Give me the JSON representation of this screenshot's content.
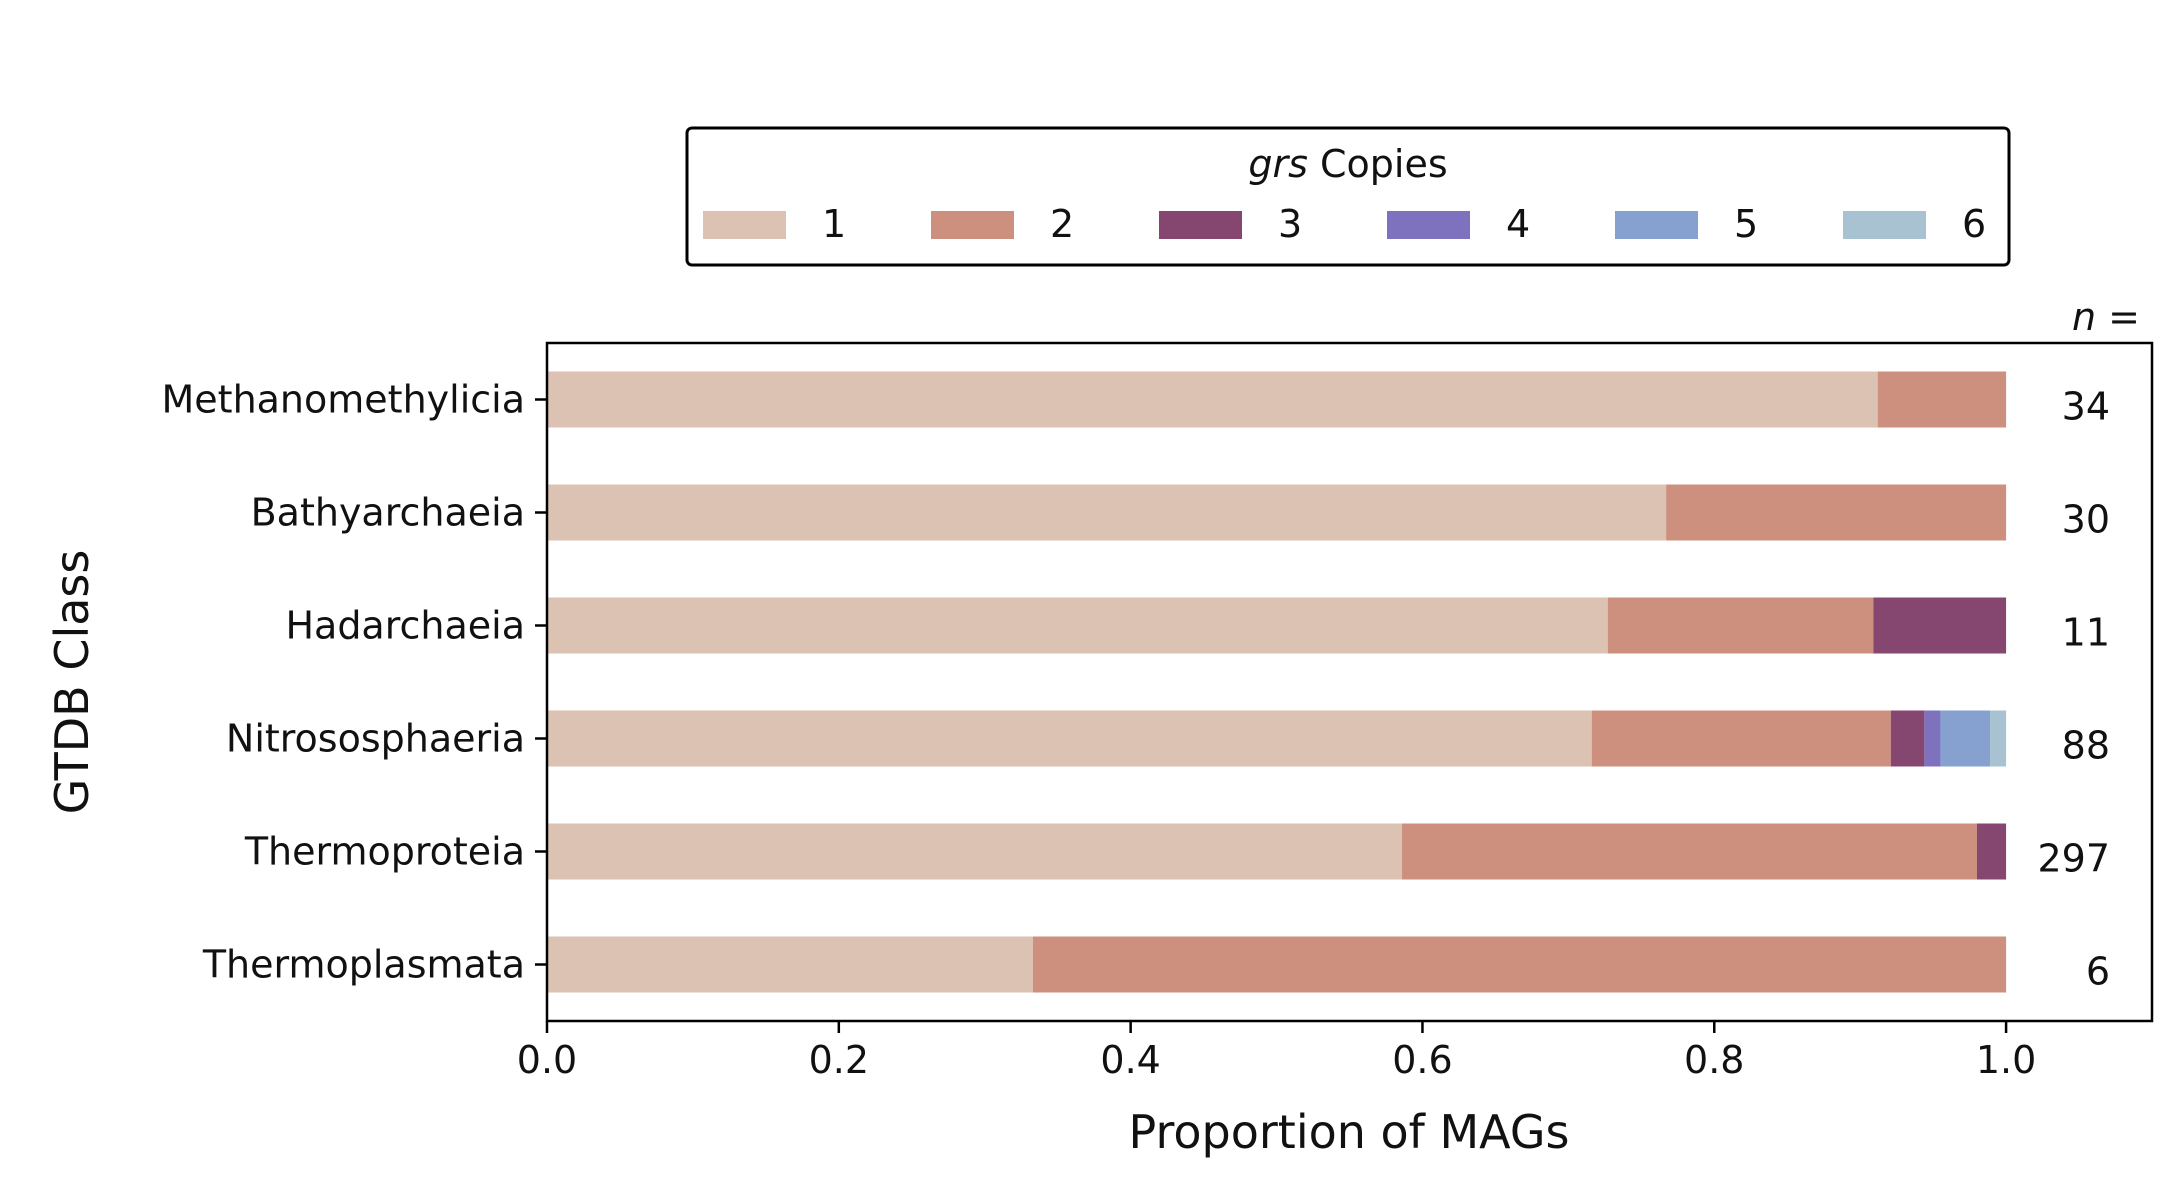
{
  "chart_data": {
    "type": "bar",
    "orientation": "horizontal",
    "stacked": true,
    "xlabel": "Proportion of MAGs",
    "ylabel": "GTDB Class",
    "xlim": [
      0,
      1.1
    ],
    "xticks": [
      "0.0",
      "0.2",
      "0.4",
      "0.6",
      "0.8",
      "1.0"
    ],
    "n_header": "n =",
    "legend": {
      "title_italic": "grs",
      "title_rest": " Copies",
      "placement": "top-center",
      "entries": [
        "1",
        "2",
        "3",
        "4",
        "5",
        "6"
      ]
    },
    "series": [
      {
        "name": "1",
        "color": "#dbc2b2"
      },
      {
        "name": "2",
        "color": "#cd8f7e"
      },
      {
        "name": "3",
        "color": "#85466f"
      },
      {
        "name": "4",
        "color": "#7e72bf"
      },
      {
        "name": "5",
        "color": "#86a0cf"
      },
      {
        "name": "6",
        "color": "#a8c2d2"
      }
    ],
    "categories": [
      {
        "name": "Methanomethylicia",
        "n": "34",
        "values": [
          0.912,
          0.088,
          0,
          0,
          0,
          0
        ]
      },
      {
        "name": "Bathyarchaeia",
        "n": "30",
        "values": [
          0.767,
          0.233,
          0,
          0,
          0,
          0
        ]
      },
      {
        "name": "Hadarchaeia",
        "n": "11",
        "values": [
          0.727,
          0.182,
          0.091,
          0,
          0,
          0
        ]
      },
      {
        "name": "Nitrososphaeria",
        "n": "88",
        "values": [
          0.716,
          0.205,
          0.023,
          0.011,
          0.034,
          0.011
        ]
      },
      {
        "name": "Thermoproteia",
        "n": "297",
        "values": [
          0.586,
          0.394,
          0.02,
          0,
          0,
          0
        ]
      },
      {
        "name": "Thermoplasmata",
        "n": "6",
        "values": [
          0.333,
          0.667,
          0,
          0,
          0,
          0
        ]
      }
    ]
  }
}
